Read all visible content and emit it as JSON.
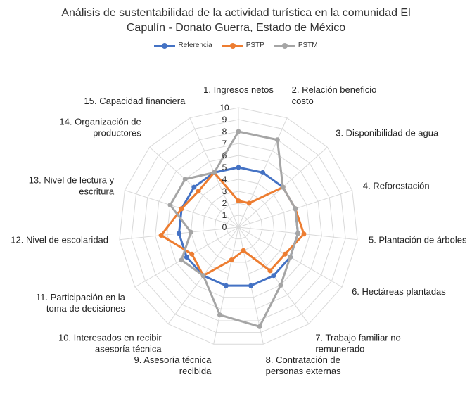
{
  "chart_data": {
    "type": "radar",
    "title_line1": "Análisis de sustentabilidad de la actividad turística en la comunidad El",
    "title_line2": "Capulín - Donato Guerra, Estado de México",
    "categories": [
      "1. Ingresos netos",
      "2. Relación beneficio costo",
      "3. Disponibilidad de agua",
      "4. Reforestación",
      "5. Plantación de árboles",
      "6. Hectáreas plantadas",
      "7. Trabajo familiar no remunerado",
      "8. Contratación de personas externas",
      "9. Asesoría técnica recibida",
      "10. Interesados en recibir asesoría técnica",
      "11. Participación en la toma de decisiones",
      "12. Nivel de escolaridad",
      "13. Nivel de lectura y escritura",
      "14. Organización de productores",
      "15. Capacidad financiera"
    ],
    "category_lines": [
      [
        "1. Ingresos netos"
      ],
      [
        "2. Relación beneficio",
        "costo"
      ],
      [
        "3. Disponibilidad de agua"
      ],
      [
        "4. Reforestación"
      ],
      [
        "5. Plantación de árboles"
      ],
      [
        "6. Hectáreas plantadas"
      ],
      [
        "7. Trabajo familiar no",
        "remunerado"
      ],
      [
        "8. Contratación de",
        "personas externas"
      ],
      [
        "9. Asesoría técnica",
        "recibida"
      ],
      [
        "10. Interesados en recibir",
        "asesoría técnica"
      ],
      [
        "11. Participación en la",
        "toma de decisiones"
      ],
      [
        "12. Nivel de escolaridad"
      ],
      [
        "13. Nivel de lectura y",
        "escritura"
      ],
      [
        "14. Organización de",
        "productores"
      ],
      [
        "15. Capacidad financiera"
      ]
    ],
    "rlim": [
      0,
      10
    ],
    "ticks": [
      0,
      1,
      2,
      3,
      4,
      5,
      6,
      7,
      8,
      9,
      10
    ],
    "grid": true,
    "legend_position": "top",
    "series": [
      {
        "name": "Referencia",
        "color": "#4472C4",
        "values": [
          5,
          5,
          5,
          5,
          5,
          5,
          5,
          5,
          5,
          5,
          5,
          5,
          5,
          5,
          5
        ]
      },
      {
        "name": "PSTP",
        "color": "#ED7D31",
        "values": [
          2.2,
          2.2,
          5,
          5,
          5.5,
          4.5,
          4.5,
          2,
          2.8,
          5,
          4.5,
          6.5,
          5,
          4.5,
          5
        ]
      },
      {
        "name": "PSTM",
        "color": "#A5A5A5",
        "values": [
          8,
          8,
          5,
          5,
          5,
          5,
          6,
          8.5,
          7.5,
          5,
          5.5,
          4,
          6,
          6,
          5
        ]
      }
    ]
  }
}
